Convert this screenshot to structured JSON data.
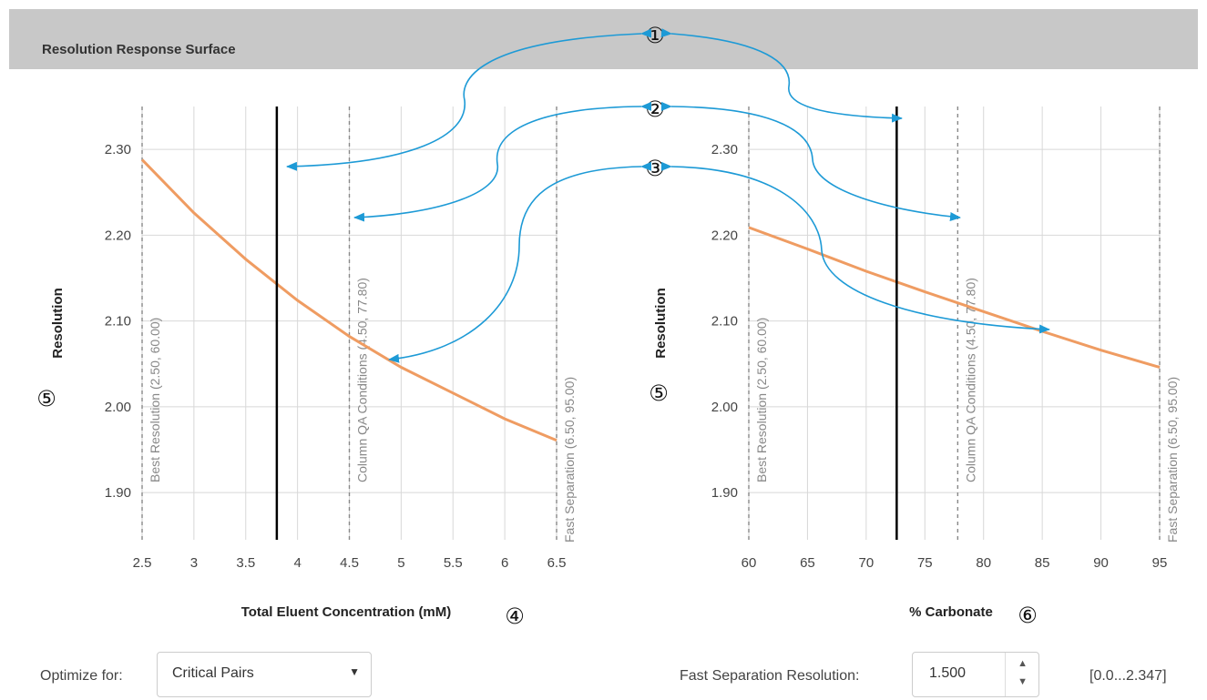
{
  "header": {
    "title": "Resolution Response Surface"
  },
  "callouts": [
    "①",
    "②",
    "③",
    "④",
    "⑤",
    "⑥"
  ],
  "colors": {
    "curve": "#ef9c62",
    "arrow": "#1d9ad6",
    "grid": "#d8d8d8",
    "refline": "#888888",
    "current": "#000000"
  },
  "chart_data": [
    {
      "type": "line",
      "title": "",
      "xlabel": "Total Eluent Concentration (mM)",
      "ylabel": "Resolution",
      "xlim": [
        2.5,
        6.5
      ],
      "ylim": [
        1.845,
        2.35
      ],
      "xticks": [
        "2.5",
        "3",
        "3.5",
        "4",
        "4.5",
        "5",
        "5.5",
        "6",
        "6.5"
      ],
      "yticks": [
        "1.90",
        "2.00",
        "2.10",
        "2.20",
        "2.30"
      ],
      "grid": true,
      "series": [
        {
          "x": [
            2.5,
            3.0,
            3.5,
            4.0,
            4.5,
            5.0,
            5.5,
            6.0,
            6.5
          ],
          "y": [
            2.288,
            2.226,
            2.172,
            2.124,
            2.082,
            2.046,
            2.016,
            1.986,
            1.961
          ]
        }
      ],
      "current_x": 3.8,
      "reference_lines": [
        {
          "x": 2.5,
          "label": "Best Resolution (2.50, 60.00)"
        },
        {
          "x": 4.5,
          "label": "Column QA Conditions (4.50, 77.80)"
        },
        {
          "x": 6.5,
          "label": "Fast Separation (6.50, 95.00)"
        }
      ]
    },
    {
      "type": "line",
      "title": "",
      "xlabel": "% Carbonate",
      "ylabel": "Resolution",
      "xlim": [
        60,
        95
      ],
      "ylim": [
        1.845,
        2.35
      ],
      "xticks": [
        "60",
        "65",
        "70",
        "75",
        "80",
        "85",
        "90",
        "95"
      ],
      "yticks": [
        "1.90",
        "2.00",
        "2.10",
        "2.20",
        "2.30"
      ],
      "grid": true,
      "series": [
        {
          "x": [
            60,
            65,
            70,
            75,
            80,
            85,
            90,
            95
          ],
          "y": [
            2.209,
            2.184,
            2.158,
            2.134,
            2.111,
            2.088,
            2.066,
            2.046
          ]
        }
      ],
      "current_x": 72.6,
      "reference_lines": [
        {
          "x": 60,
          "label": "Best Resolution (2.50, 60.00)"
        },
        {
          "x": 77.8,
          "label": "Column QA Conditions (4.50, 77.80)"
        },
        {
          "x": 95,
          "label": "Fast Separation (6.50, 95.00)"
        }
      ]
    }
  ],
  "controls": {
    "optimize_label": "Optimize for:",
    "optimize_value": "Critical Pairs",
    "fast_sep_label": "Fast Separation Resolution:",
    "fast_sep_value": "1.500",
    "range_text": "[0.0...2.347]"
  }
}
